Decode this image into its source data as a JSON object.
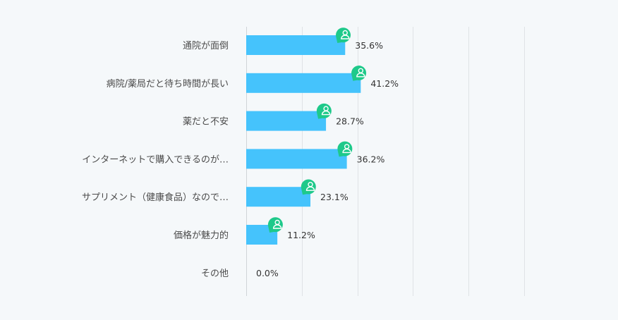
{
  "colors": {
    "bar": "#45c3fc",
    "marker": "#1ec98a",
    "marker_icon": "#ffffff",
    "grid": "#dfe3e6",
    "background": "#f5f8fa"
  },
  "icons": {
    "marker": "user-icon"
  },
  "chart_data": {
    "type": "bar",
    "orientation": "horizontal",
    "categories": [
      "通院が面倒",
      "病院/薬局だと待ち時間が長い",
      "薬だと不安",
      "インターネットで購入できるのが…",
      "サプリメント（健康食品）なので…",
      "価格が魅力的",
      "その他"
    ],
    "values": [
      35.6,
      41.2,
      28.7,
      36.2,
      23.1,
      11.2,
      0.0
    ],
    "value_labels": [
      "35.6%",
      "41.2%",
      "28.7%",
      "36.2%",
      "23.1%",
      "11.2%",
      "0.0%"
    ],
    "xlim": [
      0,
      100
    ],
    "grid": true,
    "legend": "none",
    "title": "",
    "xlabel": "",
    "ylabel": ""
  }
}
